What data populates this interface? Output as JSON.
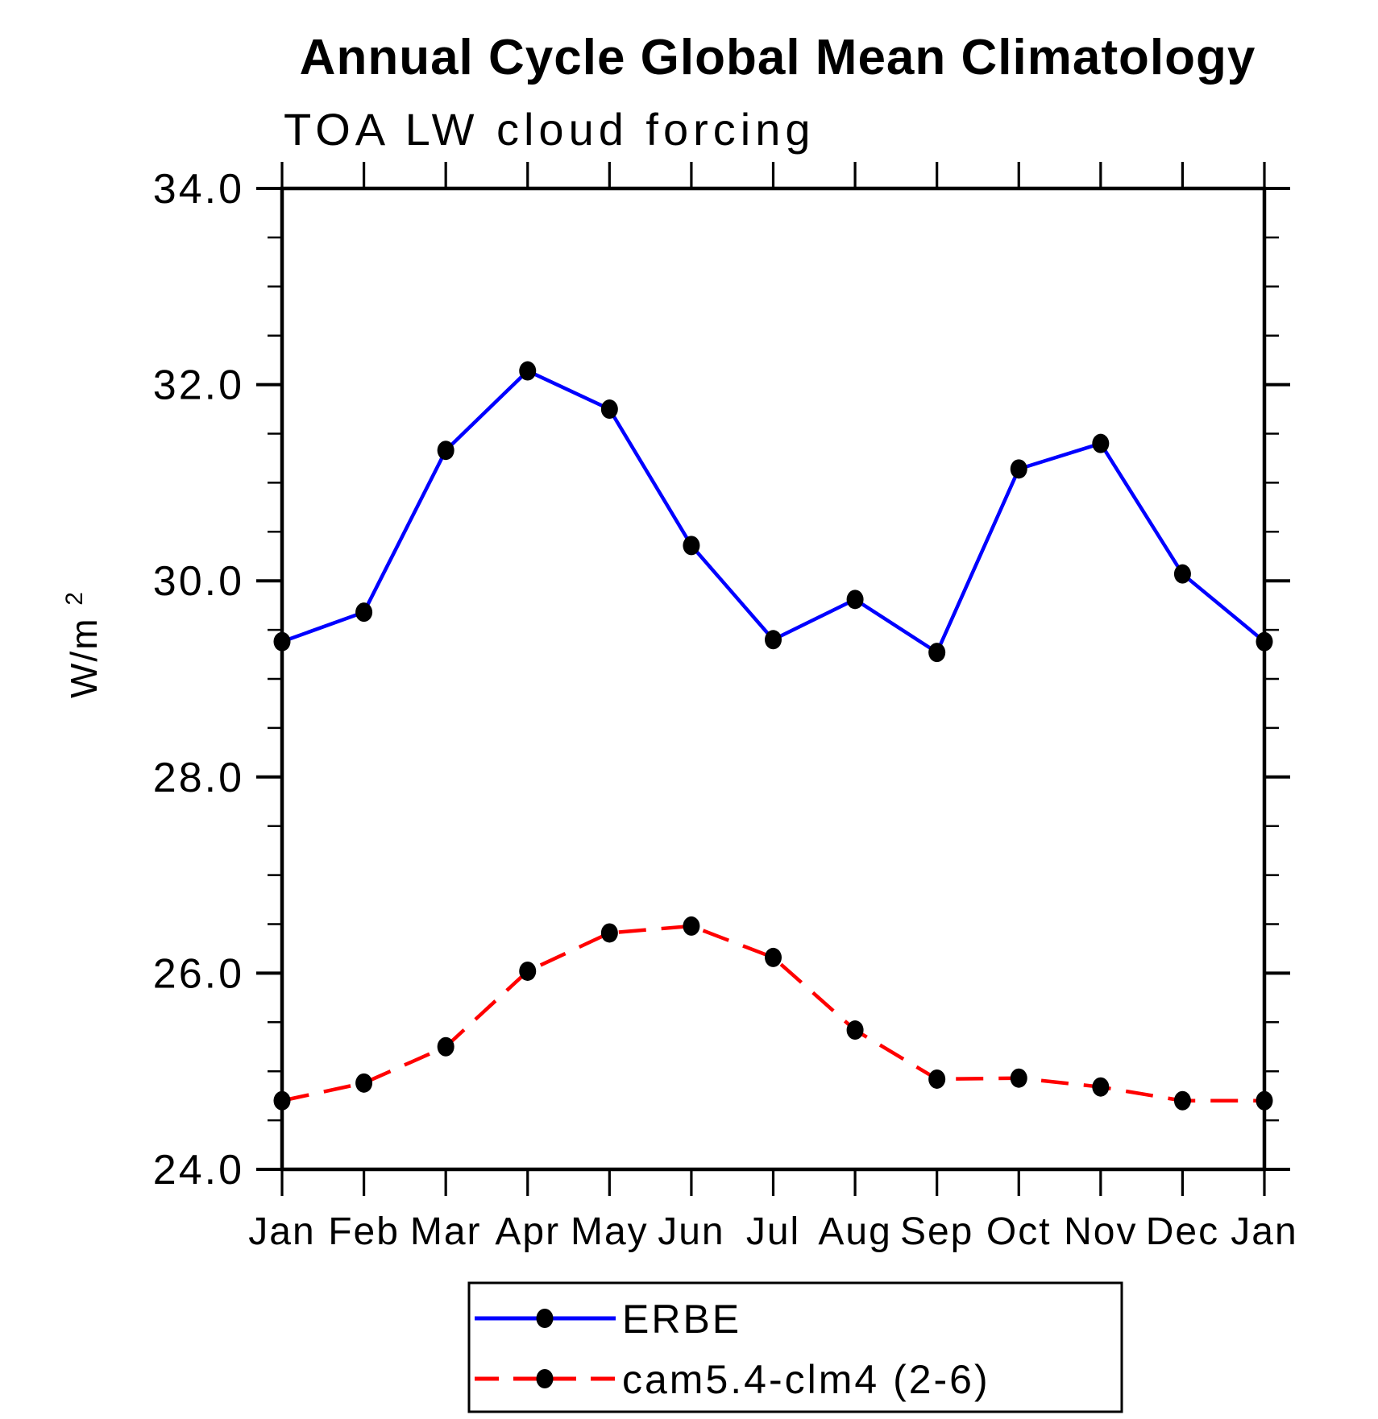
{
  "title": "Annual Cycle Global Mean Climatology",
  "subtitle": "TOA LW cloud forcing",
  "y_axis_title": {
    "base": "W/m",
    "exponent": "2"
  },
  "legend": {
    "entries": [
      {
        "label": "ERBE",
        "color": "#0000ff",
        "style": "solid"
      },
      {
        "label": "cam5.4-clm4 (2-6)",
        "color": "#ff0000",
        "style": "dashed"
      }
    ]
  },
  "chart_data": {
    "type": "line",
    "categories": [
      "Jan",
      "Feb",
      "Mar",
      "Apr",
      "May",
      "Jun",
      "Jul",
      "Aug",
      "Sep",
      "Oct",
      "Nov",
      "Dec",
      "Jan"
    ],
    "series": [
      {
        "name": "ERBE",
        "color": "#0000ff",
        "line_style": "solid",
        "marker": "filled-circle",
        "marker_color": "#000000",
        "values": [
          29.38,
          29.68,
          31.33,
          32.14,
          31.75,
          30.36,
          29.4,
          29.81,
          29.27,
          31.14,
          31.4,
          30.07,
          29.38
        ]
      },
      {
        "name": "cam5.4-clm4 (2-6)",
        "color": "#ff0000",
        "line_style": "dashed",
        "marker": "filled-circle",
        "marker_color": "#000000",
        "values": [
          24.7,
          24.88,
          25.25,
          26.02,
          26.41,
          26.48,
          26.16,
          25.42,
          24.92,
          24.93,
          24.84,
          24.7,
          24.7
        ]
      }
    ],
    "xlabel": "",
    "ylabel": "W/m2",
    "ylim": [
      24.0,
      34.0
    ],
    "y_major_step": 2.0,
    "y_minor_step": 0.5,
    "y_tick_labels": [
      "24.0",
      "26.0",
      "28.0",
      "30.0",
      "32.0",
      "34.0"
    ],
    "grid": false,
    "legend_position": "bottom"
  }
}
